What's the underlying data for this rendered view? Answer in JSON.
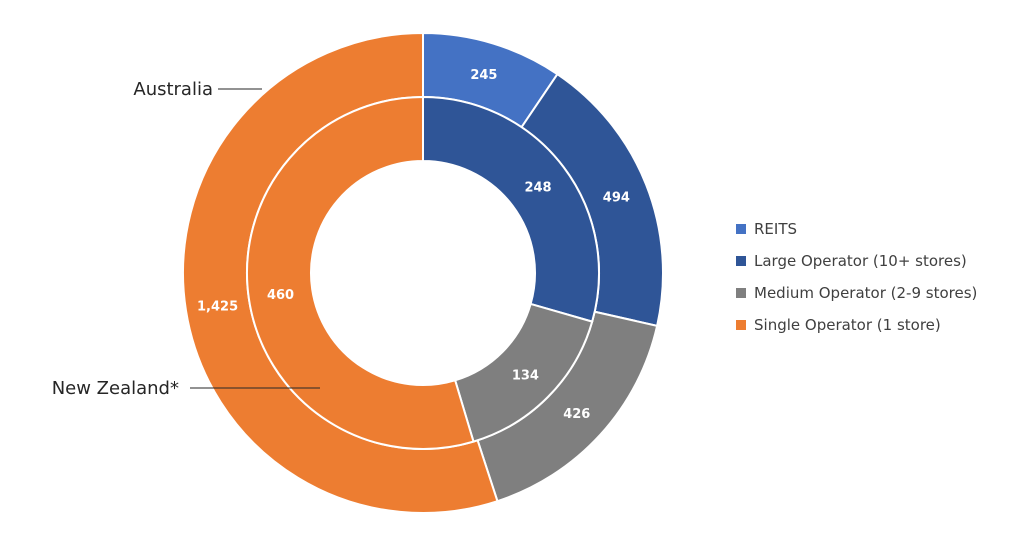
{
  "chart_data": {
    "type": "donut",
    "legend_position": "right",
    "categories": [
      "REITS",
      "Large Operator (10+ stores)",
      "Medium Operator (2-9 stores)",
      "Single Operator (1 store)"
    ],
    "colors": [
      "#4472C4",
      "#2F5597",
      "#7F7F7F",
      "#ED7D31"
    ],
    "series": [
      {
        "name": "Australia",
        "values": [
          245,
          494,
          426,
          1425
        ]
      },
      {
        "name": "New Zealand*",
        "values": [
          0,
          248,
          134,
          460
        ]
      }
    ],
    "value_labels": [
      [
        "245",
        "494",
        "426",
        "1,425"
      ],
      [
        "",
        "248",
        "134",
        "460"
      ]
    ]
  }
}
